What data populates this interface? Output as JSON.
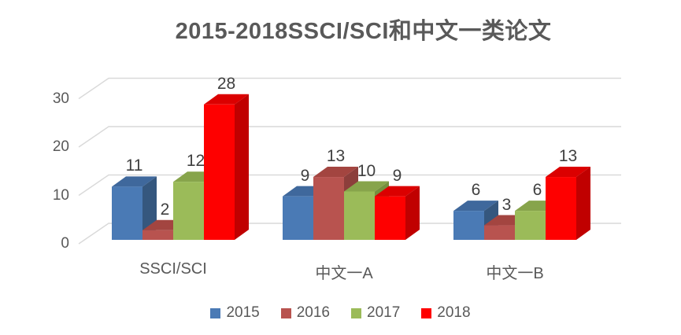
{
  "chart_data": {
    "type": "bar",
    "subtype": "3d-clustered-column",
    "title": "2015-2018SSCI/SCI和中文一类论文",
    "categories": [
      "SSCI/SCI",
      "中文一A",
      "中文一B"
    ],
    "series": [
      {
        "name": "2015",
        "values": [
          11,
          9,
          6
        ],
        "color": "#4A7AB5",
        "color_top": "#3F689C",
        "color_side": "#35577E"
      },
      {
        "name": "2016",
        "values": [
          2,
          13,
          3
        ],
        "color": "#B8534F",
        "color_top": "#A34540",
        "color_side": "#8C3E3B"
      },
      {
        "name": "2017",
        "values": [
          12,
          10,
          6
        ],
        "color": "#9BBB59",
        "color_top": "#87A44B",
        "color_side": "#75903E"
      },
      {
        "name": "2018",
        "values": [
          28,
          9,
          13
        ],
        "color": "#FE0000",
        "color_top": "#DB0000",
        "color_side": "#C00000"
      }
    ],
    "xlabel": "",
    "ylabel": "",
    "ylim": [
      0,
      30
    ],
    "yticks": [
      0,
      10,
      20,
      30
    ],
    "grid": true,
    "legend_position": "bottom",
    "colors": {
      "gridline": "#D9D9D9",
      "axis_text": "#595959",
      "title_text": "#595959",
      "value_label_text": "#404040",
      "background": "#FFFFFF"
    }
  }
}
